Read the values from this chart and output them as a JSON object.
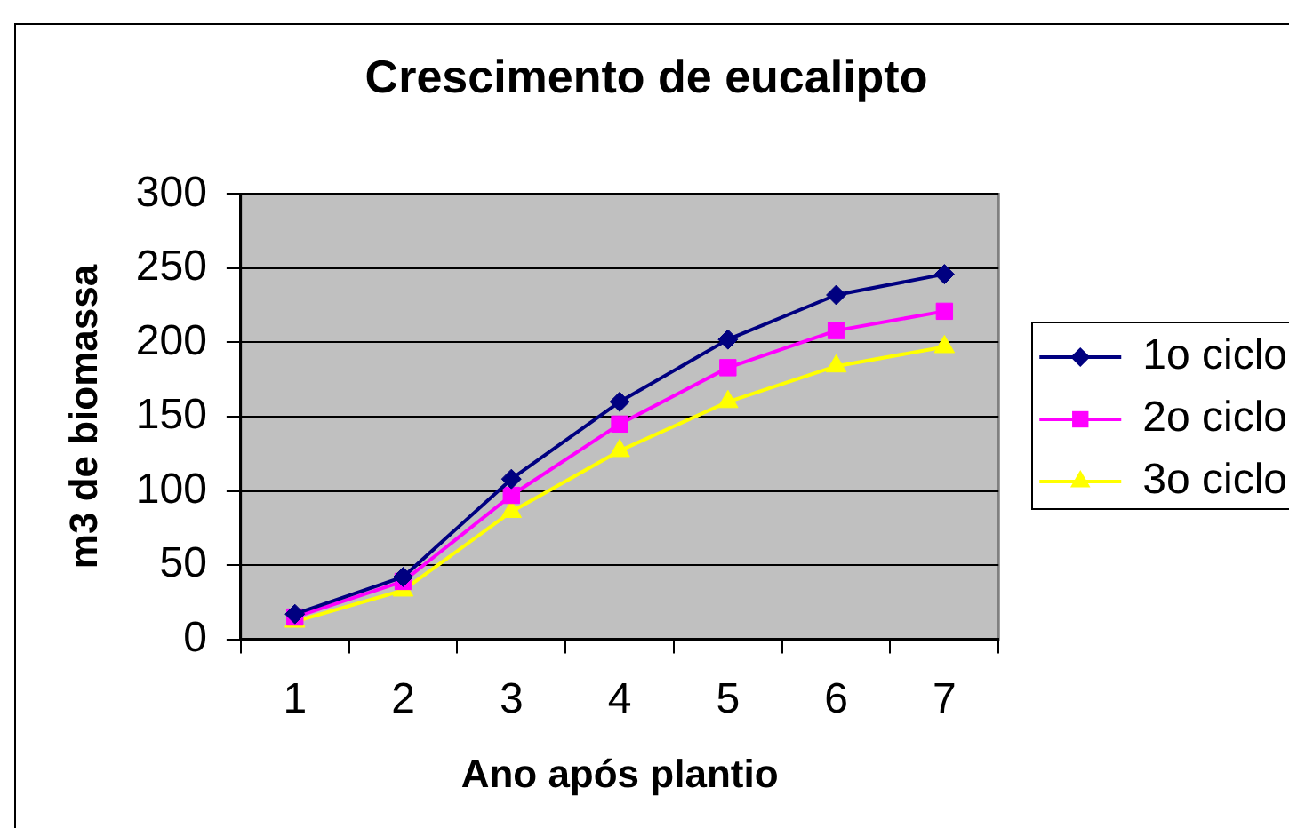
{
  "chart_data": {
    "type": "line",
    "title": "Crescimento de eucalipto",
    "xlabel": "Ano após plantio",
    "ylabel": "m3 de biomassa",
    "categories": [
      "1",
      "2",
      "3",
      "4",
      "5",
      "6",
      "7"
    ],
    "series": [
      {
        "name": "1o ciclo",
        "color": "#000080",
        "marker": "diamond",
        "values": [
          17,
          42,
          108,
          160,
          202,
          232,
          246
        ]
      },
      {
        "name": "2o ciclo",
        "color": "#ff00ff",
        "marker": "square",
        "values": [
          15,
          39,
          97,
          145,
          183,
          208,
          221
        ]
      },
      {
        "name": "3o ciclo",
        "color": "#ffff00",
        "marker": "triangle",
        "values": [
          12,
          33,
          86,
          127,
          160,
          184,
          197
        ]
      }
    ],
    "ylim": [
      0,
      300
    ],
    "yticks": [
      0,
      50,
      100,
      150,
      200,
      250,
      300
    ],
    "grid": "y",
    "legend": "right",
    "line_style": "solid"
  }
}
